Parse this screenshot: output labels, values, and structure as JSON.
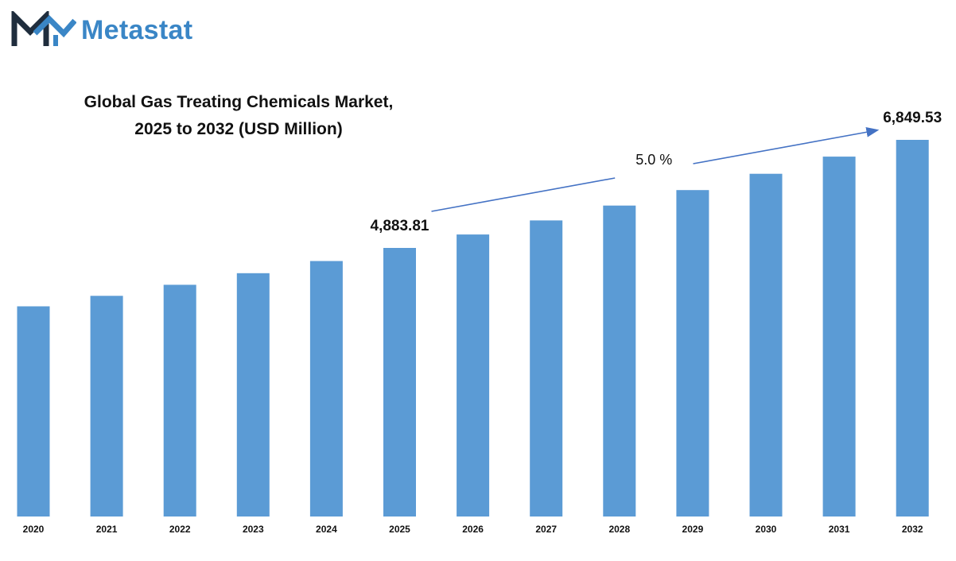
{
  "brand": {
    "name": "Metastat",
    "logo_icon": "metastat-m-logo-icon",
    "color": "#3a86c6"
  },
  "chart_data": {
    "type": "bar",
    "title_lines": [
      "Global Gas Treating Chemicals Market,",
      "2025 to 2032 (USD Million)"
    ],
    "xlabel": "",
    "ylabel": "",
    "categories": [
      "2020",
      "2021",
      "2022",
      "2023",
      "2024",
      "2025",
      "2026",
      "2027",
      "2028",
      "2029",
      "2030",
      "2031",
      "2032"
    ],
    "series": [
      {
        "values": [
          3822,
          4013,
          4214,
          4425,
          4646,
          4883.81,
          5128,
          5384,
          5654,
          5936,
          6233,
          6545,
          6849.53
        ],
        "color": "#5b9bd5"
      }
    ],
    "data_labels": [
      {
        "category": "2025",
        "text": "4,883.81"
      },
      {
        "category": "2032",
        "text": "6,849.53"
      }
    ],
    "annotation": {
      "text": "5.0 %",
      "type": "cagr-arrow",
      "from": "2025",
      "to": "2032",
      "color": "#4472c4"
    },
    "ylim": [
      0,
      6849.53
    ],
    "grid": false,
    "legend": "none"
  }
}
